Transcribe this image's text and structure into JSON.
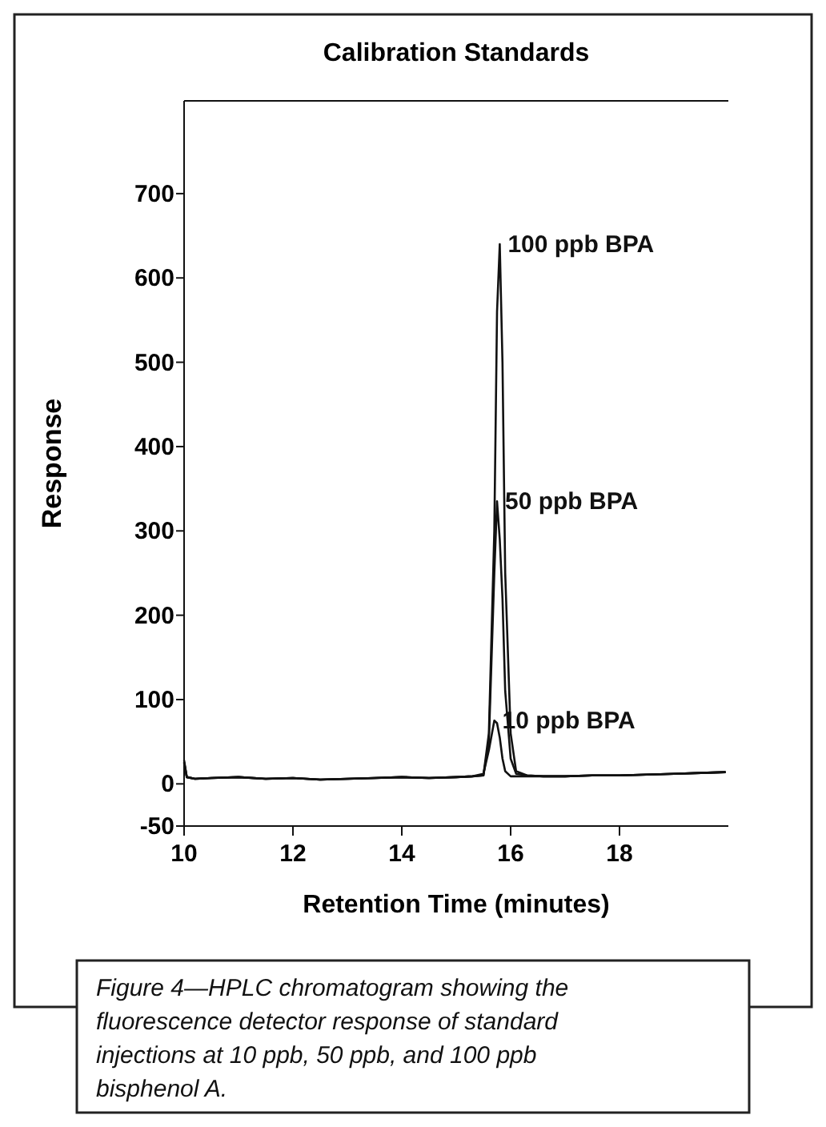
{
  "chart_data": {
    "type": "line",
    "title": "Calibration Standards",
    "xlabel": "Retention Time (minutes)",
    "ylabel": "Response",
    "x": [
      10,
      10.05,
      10.2,
      10.5,
      11,
      11.5,
      12,
      12.5,
      13,
      13.5,
      14,
      14.5,
      15,
      15.3,
      15.5,
      15.6,
      15.7,
      15.75,
      15.8,
      15.85,
      15.9,
      16,
      16.1,
      16.3,
      16.6,
      17,
      17.5,
      18,
      18.5,
      19,
      19.5,
      19.95
    ],
    "series": [
      {
        "name": "100 ppb BPA",
        "color": "#111111",
        "values": [
          28,
          8,
          6,
          7,
          8,
          6,
          7,
          5,
          6,
          7,
          8,
          7,
          8,
          9,
          10,
          60,
          300,
          560,
          640,
          500,
          250,
          60,
          15,
          10,
          9,
          9,
          10,
          10,
          11,
          12,
          13,
          14
        ]
      },
      {
        "name": "50 ppb BPA",
        "color": "#111111",
        "values": [
          26,
          8,
          6,
          7,
          8,
          6,
          7,
          5,
          6,
          7,
          8,
          7,
          8,
          9,
          10,
          50,
          250,
          335,
          290,
          220,
          110,
          30,
          12,
          10,
          9,
          9,
          10,
          10,
          11,
          12,
          13,
          14
        ]
      },
      {
        "name": "10 ppb BPA",
        "color": "#111111",
        "values": [
          25,
          8,
          6,
          7,
          8,
          6,
          7,
          5,
          6,
          7,
          8,
          7,
          8,
          9,
          12,
          40,
          75,
          72,
          55,
          30,
          15,
          9,
          9,
          9,
          9,
          9,
          10,
          10,
          11,
          12,
          13,
          14
        ]
      }
    ],
    "xlim": [
      10,
      20
    ],
    "xticks": [
      10,
      12,
      14,
      16,
      18
    ],
    "ylim": [
      -50,
      810
    ],
    "yticks": [
      -50,
      0,
      100,
      200,
      300,
      400,
      500,
      600,
      700
    ],
    "grid": false,
    "marker": "none",
    "line_style": "solid",
    "annotations": [
      "Figure 4—HPLC chromatogram showing the fluorescence detector response of standard injections at 10 ppb, 50 ppb, and 100 ppb bisphenol A."
    ]
  }
}
